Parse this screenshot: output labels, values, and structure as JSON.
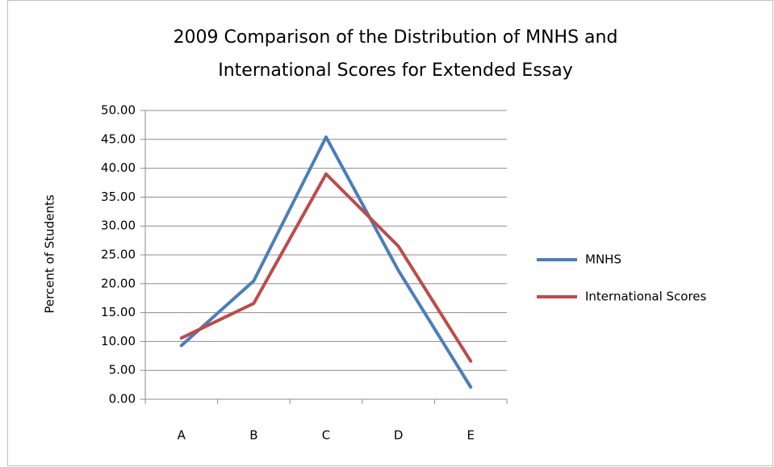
{
  "chart_data": {
    "type": "line",
    "title": [
      "2009 Comparison of the Distribution of MNHS and",
      "International Scores for Extended Essay"
    ],
    "y_label": "Percent of Students",
    "categories": [
      "A",
      "B",
      "C",
      "D",
      "E"
    ],
    "series": [
      {
        "name": "MNHS",
        "color": "#4a7ebb",
        "values": [
          9.3,
          20.5,
          45.4,
          22.3,
          2.1
        ]
      },
      {
        "name": "International Scores",
        "color": "#be4b48",
        "values": [
          10.6,
          16.6,
          39.0,
          26.5,
          6.6
        ]
      }
    ],
    "ylim": [
      0,
      50
    ],
    "yticks": [
      {
        "value": 0,
        "label": "0.00"
      },
      {
        "value": 5,
        "label": "5.00"
      },
      {
        "value": 10,
        "label": "10.00"
      },
      {
        "value": 15,
        "label": "15.00"
      },
      {
        "value": 20,
        "label": "20.00"
      },
      {
        "value": 25,
        "label": "25.00"
      },
      {
        "value": 30,
        "label": "30.00"
      },
      {
        "value": 35,
        "label": "35.00"
      },
      {
        "value": 40,
        "label": "40.00"
      },
      {
        "value": 45,
        "label": "45.00"
      },
      {
        "value": 50,
        "label": "50.00"
      }
    ],
    "grid": true,
    "legend": "right"
  }
}
